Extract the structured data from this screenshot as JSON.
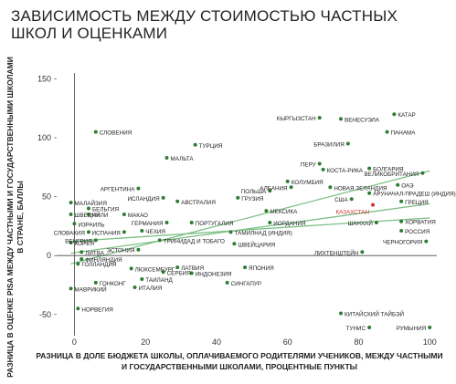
{
  "title": "ЗАВИСИМОСТЬ МЕЖДУ СТОИМОСТЬЮ ЧАСТНЫХ ШКОЛ И ОЦЕНКАМИ",
  "colors": {
    "point": "#2e7d32",
    "trend": "#7bbf84",
    "highlight": "#d32f2f",
    "axis": "#444444",
    "grid": "#e2e2e2"
  },
  "chart_data": {
    "type": "scatter",
    "xlabel": "РАЗНИЦА В ДОЛЕ БЮДЖЕТА ШКОЛЫ, ОПЛАЧИВАЕМОГО РОДИТЕЛЯМИ УЧЕНИКОВ, МЕЖДУ ЧАСТНЫМИ И ГОСУДАРСТВЕННЫМИ ШКОЛАМИ, ПРОЦЕНТНЫЕ ПУНКТЫ",
    "xlabel_lines": [
      "РАЗНИЦА В ДОЛЕ БЮДЖЕТА ШКОЛЫ, ОПЛАЧИВАЕМОГО РОДИТЕЛЯМИ УЧЕНИКОВ, МЕЖДУ ЧАСТНЫМИ",
      "И ГОСУДАРСТВЕННЫМИ ШКОЛАМИ, ПРОЦЕНТНЫЕ ПУНКТЫ"
    ],
    "ylabel": "РАЗНИЦА В ОЦЕНКЕ PISA МЕЖДУ ЧАСТНЫМИ И ГОСУДАРСТВЕННЫМИ ШКОЛАМИ В СТРАНЕ, БАЛЛЫ",
    "ylabel_lines": [
      "РАЗНИЦА В ОЦЕНКЕ PISA МЕЖДУ ЧАСТНЫМИ И ГОСУДАРСТВЕННЫМИ ШКОЛАМИ",
      "В СТРАНЕ, БАЛЛЫ"
    ],
    "xlim": [
      -5,
      102
    ],
    "ylim": [
      -68,
      155
    ],
    "xticks": [
      0,
      20,
      40,
      60,
      80,
      100
    ],
    "yticks": [
      -50,
      0,
      50,
      100,
      150
    ],
    "grid": false,
    "highlight": "КАЗАХСТАН",
    "trendlines": [
      {
        "x": [
          -1,
          100
        ],
        "y": [
          -7,
          72
        ]
      },
      {
        "x": [
          -1,
          100
        ],
        "y": [
          2,
          44
        ]
      },
      {
        "x": [
          -1,
          100
        ],
        "y": [
          12,
          32
        ]
      }
    ],
    "points": [
      {
        "label": "КЫРГЫЗСТАН",
        "x": 69,
        "y": 117,
        "side": "left"
      },
      {
        "label": "ВЕНЕСУЭЛА",
        "x": 75,
        "y": 116,
        "side": "right"
      },
      {
        "label": "КАТАР",
        "x": 90,
        "y": 120,
        "side": "right"
      },
      {
        "label": "ПАНАМА",
        "x": 88,
        "y": 105,
        "side": "right"
      },
      {
        "label": "СЛОВЕНИЯ",
        "x": 6,
        "y": 105,
        "side": "right"
      },
      {
        "label": "ТУРЦИЯ",
        "x": 34,
        "y": 94,
        "side": "right"
      },
      {
        "label": "БРАЗИЛИЯ",
        "x": 77,
        "y": 95,
        "side": "left"
      },
      {
        "label": "МАЛЬТА",
        "x": 26,
        "y": 83,
        "side": "right"
      },
      {
        "label": "ПЕРУ",
        "x": 69,
        "y": 78,
        "side": "left"
      },
      {
        "label": "КОСТА-РИКА",
        "x": 70,
        "y": 73,
        "side": "right"
      },
      {
        "label": "БОЛГАРИЯ",
        "x": 83,
        "y": 74,
        "side": "right"
      },
      {
        "label": "ВЕЛИКОБРИТАНИЯ",
        "x": 98,
        "y": 70,
        "side": "left"
      },
      {
        "label": "АРГЕНТИНА",
        "x": 18,
        "y": 57,
        "side": "left"
      },
      {
        "label": "КОЛУМБИЯ",
        "x": 60,
        "y": 63,
        "side": "right"
      },
      {
        "label": "АЛБАНИЯ",
        "x": 61,
        "y": 58,
        "side": "left"
      },
      {
        "label": "НОВАЯ ЗЕЛАНДИЯ",
        "x": 72,
        "y": 58,
        "side": "right"
      },
      {
        "label": "ОАЭ",
        "x": 91,
        "y": 60,
        "side": "right"
      },
      {
        "label": "АРУНАЧАЛ-ПРАДЕШ (ИНДИЯ)",
        "x": 83,
        "y": 53,
        "side": "right"
      },
      {
        "label": "ИСЛАНДИЯ",
        "x": 25,
        "y": 49,
        "side": "left"
      },
      {
        "label": "ПОЛЬША",
        "x": 55,
        "y": 55,
        "side": "left"
      },
      {
        "label": "ГРУЗИЯ",
        "x": 46,
        "y": 49,
        "side": "right"
      },
      {
        "label": "АВСТРАЛИЯ",
        "x": 29,
        "y": 46,
        "side": "right"
      },
      {
        "label": "США",
        "x": 78,
        "y": 48,
        "side": "left"
      },
      {
        "label": "ГРЕЦИЯ",
        "x": 92,
        "y": 46,
        "side": "right"
      },
      {
        "label": "КАЗАХСТАН",
        "x": 84,
        "y": 43,
        "side": "below"
      },
      {
        "label": "МАЛАЙЗИЯ",
        "x": -1,
        "y": 45,
        "side": "right"
      },
      {
        "label": "БЕЛЬГИЯ",
        "x": 4,
        "y": 40,
        "side": "right"
      },
      {
        "label": "ШВЕЦИЯ",
        "x": -1,
        "y": 35,
        "side": "right"
      },
      {
        "label": "ЧИЛИ",
        "x": 4,
        "y": 35,
        "side": "right"
      },
      {
        "label": "ИЗРАИЛЬ",
        "x": 0,
        "y": 27,
        "side": "right"
      },
      {
        "label": "МАКАО",
        "x": 14,
        "y": 35,
        "side": "right"
      },
      {
        "label": "ГЕРМАНИЯ",
        "x": 26,
        "y": 28,
        "side": "left"
      },
      {
        "label": "ПОРТУГАЛИЯ",
        "x": 33,
        "y": 28,
        "side": "right"
      },
      {
        "label": "МЕКСИКА",
        "x": 54,
        "y": 38,
        "side": "right"
      },
      {
        "label": "ИОРДАНИЯ",
        "x": 55,
        "y": 28,
        "side": "right"
      },
      {
        "label": "ШАНХАЙ",
        "x": 85,
        "y": 28,
        "side": "left"
      },
      {
        "label": "ХОРВАТИЯ",
        "x": 92,
        "y": 29,
        "side": "right"
      },
      {
        "label": "СЛОВАКИЯ",
        "x": 4,
        "y": 20,
        "side": "left"
      },
      {
        "label": "ИСПАНИЯ",
        "x": 14,
        "y": 20,
        "side": "left"
      },
      {
        "label": "ЧЕХИЯ",
        "x": 19,
        "y": 21,
        "side": "right"
      },
      {
        "label": "ТАМИЛНАД (ИНДИЯ)",
        "x": 44,
        "y": 20,
        "side": "right"
      },
      {
        "label": "РОССИЯ",
        "x": 92,
        "y": 21,
        "side": "right"
      },
      {
        "label": "ВЕНГРИЯ",
        "x": 6,
        "y": 13,
        "side": "left"
      },
      {
        "label": "КОРЕЯ",
        "x": -1,
        "y": 11,
        "side": "right"
      },
      {
        "label": "ТРИНИДАД И ТОБАГО",
        "x": 24,
        "y": 13,
        "side": "right"
      },
      {
        "label": "ШВЕЙЦАРИЯ",
        "x": 45,
        "y": 10,
        "side": "right"
      },
      {
        "label": "ЧЕРНОГОРИЯ",
        "x": 99,
        "y": 12,
        "side": "left"
      },
      {
        "label": "ЭСТОНИЯ",
        "x": 18,
        "y": 5,
        "side": "left"
      },
      {
        "label": "ЛИТВА",
        "x": 2,
        "y": 3,
        "side": "right"
      },
      {
        "label": "ЛИХТЕНШТЕЙН",
        "x": 81,
        "y": 3,
        "side": "left"
      },
      {
        "label": "ФИНЛЯНДИЯ",
        "x": 2,
        "y": -3,
        "side": "right"
      },
      {
        "label": "ГОЛЛАНДИЯ",
        "x": 1,
        "y": -7,
        "side": "right"
      },
      {
        "label": "ЛЮКСЕМБУРГ",
        "x": 16,
        "y": -11,
        "side": "right"
      },
      {
        "label": "ЛАТВИЯ",
        "x": 29,
        "y": -10,
        "side": "right"
      },
      {
        "label": "ЯПОНИЯ",
        "x": 48,
        "y": -10,
        "side": "right"
      },
      {
        "label": "СЕРБИЯ",
        "x": 25,
        "y": -14,
        "side": "right"
      },
      {
        "label": "ИНДОНЕЗИЯ",
        "x": 33,
        "y": -15,
        "side": "right"
      },
      {
        "label": "ГОНКОНГ",
        "x": 6,
        "y": -23,
        "side": "right"
      },
      {
        "label": "ТАИЛАНД",
        "x": 19,
        "y": -20,
        "side": "right"
      },
      {
        "label": "ИТАЛИЯ",
        "x": 17,
        "y": -27,
        "side": "right"
      },
      {
        "label": "СИНГАПУР",
        "x": 43,
        "y": -23,
        "side": "right"
      },
      {
        "label": "МАВРИКИЙ",
        "x": -1,
        "y": -28,
        "side": "right"
      },
      {
        "label": "НОРВЕГИЯ",
        "x": 1,
        "y": -45,
        "side": "right"
      },
      {
        "label": "КИТАЙСКИЙ ТАЙБЭЙ",
        "x": 75,
        "y": -49,
        "side": "right"
      },
      {
        "label": "ТУНИС",
        "x": 83,
        "y": -61,
        "side": "left"
      },
      {
        "label": "РУМЫНИЯ",
        "x": 100,
        "y": -61,
        "side": "left"
      }
    ]
  }
}
